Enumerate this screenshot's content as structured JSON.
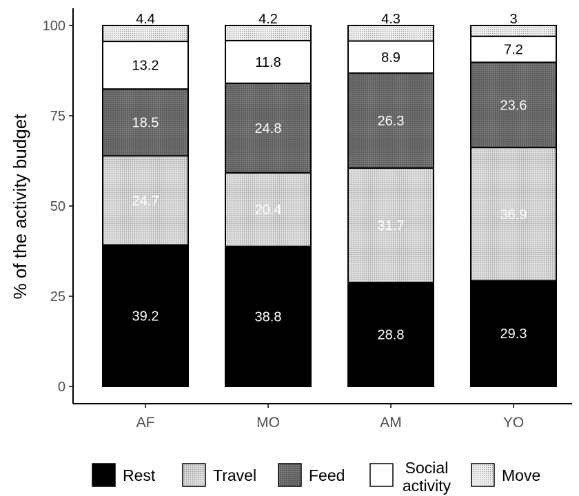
{
  "chart_data": {
    "type": "bar",
    "stacked": true,
    "title": "",
    "xlabel": "",
    "ylabel": "% of the activity budget",
    "ylim": [
      0,
      100
    ],
    "yticks": [
      "0",
      "25",
      "50",
      "75",
      "100"
    ],
    "categories": [
      "AF",
      "MO",
      "AM",
      "YO"
    ],
    "series": [
      {
        "name": "Rest",
        "values": [
          39.2,
          38.8,
          28.8,
          29.3
        ],
        "labels": [
          "39.2",
          "38.8",
          "28.8",
          "29.3"
        ],
        "fill": "#000000",
        "pattern": "solid",
        "label_color": "#ffffff"
      },
      {
        "name": "Travel",
        "values": [
          24.7,
          20.4,
          31.7,
          36.9
        ],
        "labels": [
          "24.7",
          "20.4",
          "31.7",
          "36.9"
        ],
        "fill": "#c8c8c8",
        "pattern": "grid-light",
        "label_color": "#ffffff"
      },
      {
        "name": "Feed",
        "values": [
          18.5,
          24.8,
          26.3,
          23.6
        ],
        "labels": [
          "18.5",
          "24.8",
          "26.3",
          "23.6"
        ],
        "fill": "#6a6a6a",
        "pattern": "grid-dark",
        "label_color": "#ffffff"
      },
      {
        "name": "Social activity",
        "values": [
          13.2,
          11.8,
          8.9,
          7.2
        ],
        "labels": [
          "13.2",
          "11.8",
          "8.9",
          "7.2"
        ],
        "fill": "#ffffff",
        "pattern": "solid",
        "label_color": "#000000"
      },
      {
        "name": "Move",
        "values": [
          4.4,
          4.2,
          4.3,
          3.0
        ],
        "labels": [
          "4.4",
          "4.2",
          "4.3",
          "3"
        ],
        "fill": "#dcdcdc",
        "pattern": "dots",
        "label_color": "#000000"
      }
    ],
    "legend": {
      "position": "bottom",
      "items": [
        {
          "name": "Rest",
          "lines": [
            "Rest"
          ]
        },
        {
          "name": "Travel",
          "lines": [
            "Travel"
          ]
        },
        {
          "name": "Feed",
          "lines": [
            "Feed"
          ]
        },
        {
          "name": "Social activity",
          "lines": [
            "Social",
            "activity"
          ]
        },
        {
          "name": "Move",
          "lines": [
            "Move"
          ]
        }
      ]
    },
    "grid": false,
    "axis_color": "#000000",
    "tick_label_color": "#4d4d4d"
  }
}
